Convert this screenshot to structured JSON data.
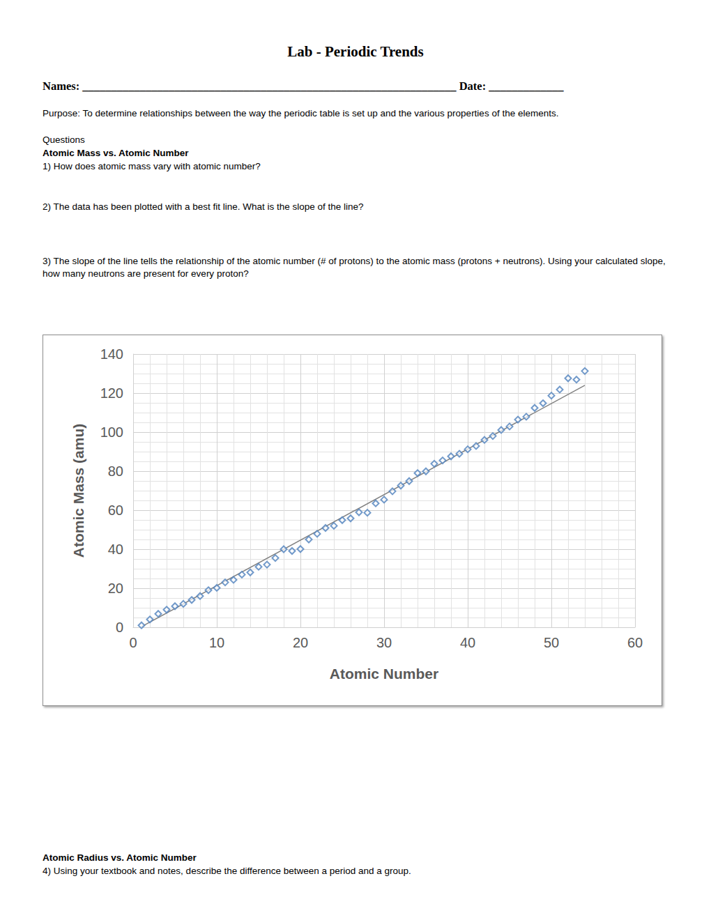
{
  "header": {
    "title": "Lab - Periodic Trends",
    "names": "Names: _________________________________________________________________",
    "date": "Date: _____________"
  },
  "purpose": "Purpose: To determine relationships between the way the periodic table is set up and the various properties of the elements.",
  "questions_label": "Questions",
  "section1": {
    "heading": "Atomic Mass vs. Atomic Number",
    "questions": [
      "1) How does atomic mass vary with atomic number?",
      "2) The data has been plotted with a best fit line. What is the slope of the line?",
      "3) The slope of the line tells the relationship of the atomic number (# of protons) to the atomic mass (protons + neutrons). Using your calculated slope, how many neutrons are present for every proton?"
    ]
  },
  "chart_data": {
    "type": "scatter",
    "x_label": "Atomic Number",
    "y_label": "Atomic Mass (amu)",
    "xlim": [
      0,
      60
    ],
    "xticks": [
      0,
      10,
      20,
      30,
      40,
      50,
      60
    ],
    "ylim": [
      0,
      140
    ],
    "yticks": [
      0,
      20,
      40,
      60,
      80,
      100,
      120,
      140
    ],
    "grid": true,
    "series": [
      {
        "type": "scatter",
        "marker": "diamond",
        "color": "#4f81bd",
        "x": [
          1,
          2,
          3,
          4,
          5,
          6,
          7,
          8,
          9,
          10,
          11,
          12,
          13,
          14,
          15,
          16,
          17,
          18,
          19,
          20,
          21,
          22,
          23,
          24,
          25,
          26,
          27,
          28,
          29,
          30,
          31,
          32,
          33,
          34,
          35,
          36,
          37,
          38,
          39,
          40,
          41,
          42,
          43,
          44,
          45,
          46,
          47,
          48,
          49,
          50,
          51,
          52,
          53,
          54
        ],
        "values": [
          1.0,
          4.0,
          6.9,
          9.0,
          10.8,
          12.0,
          14.0,
          16.0,
          19.0,
          20.2,
          23.0,
          24.3,
          27.0,
          28.1,
          31.0,
          32.1,
          35.5,
          40.0,
          39.1,
          40.1,
          45.0,
          47.9,
          50.9,
          52.0,
          54.9,
          55.8,
          58.9,
          58.7,
          63.5,
          65.4,
          69.7,
          72.6,
          74.9,
          79.0,
          79.9,
          83.8,
          85.5,
          87.6,
          88.9,
          91.2,
          92.9,
          96.0,
          98.0,
          101.1,
          102.9,
          106.4,
          107.9,
          112.4,
          114.8,
          118.7,
          121.8,
          127.6,
          126.9,
          131.3
        ]
      },
      {
        "type": "line",
        "line_style": "solid",
        "color": "#808080",
        "x": [
          1,
          54
        ],
        "values": [
          0.3,
          124
        ]
      }
    ]
  },
  "section2": {
    "heading": "Atomic Radius vs. Atomic Number",
    "questions": [
      "4) Using your textbook and notes, describe the difference between a period and a group."
    ]
  }
}
